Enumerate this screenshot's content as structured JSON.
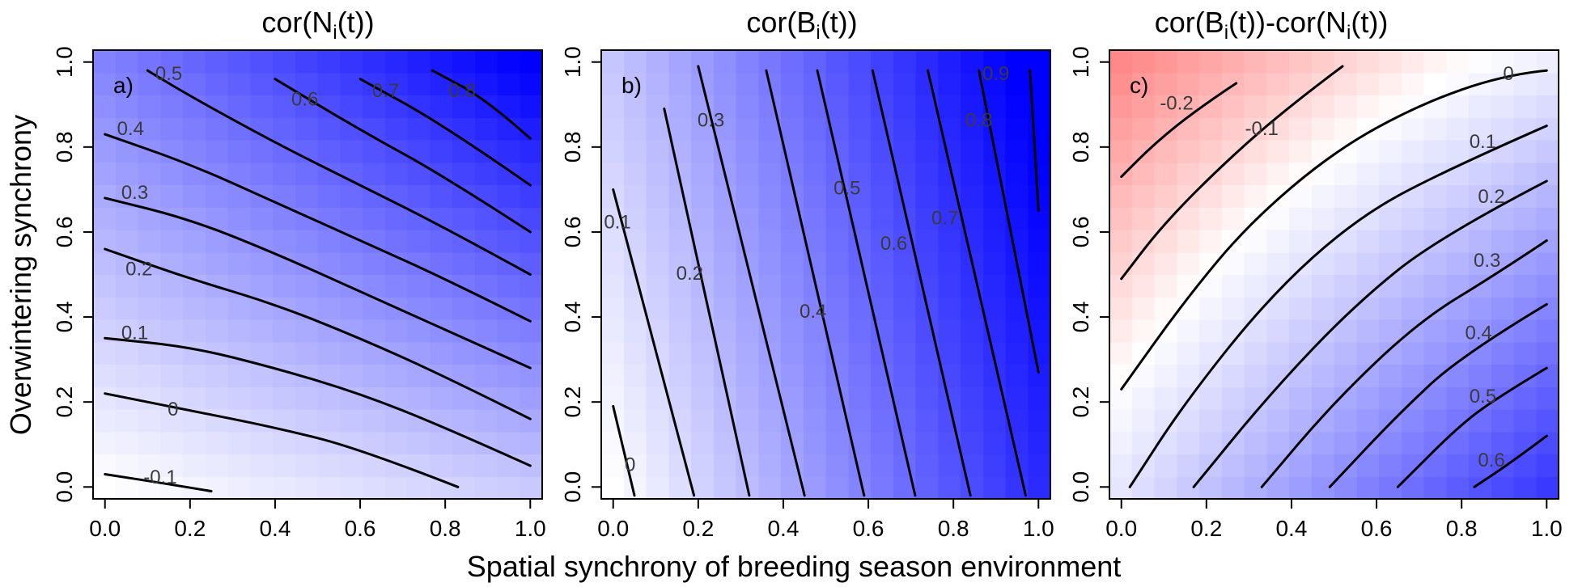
{
  "figure": {
    "x_axis_label": "Spatial synchrony of breeding season environment",
    "y_axis_label": "Overwintering synchrony"
  },
  "colors": {
    "negative": "#ff0000",
    "zero": "#ffffff",
    "positive": "#0000ff",
    "contour": "#000000"
  },
  "chart_data": [
    {
      "type": "heatmap",
      "panel": "a)",
      "title_parts": [
        "cor(N",
        "i",
        "(t))"
      ],
      "title_text": "cor(Ni(t))",
      "x": [
        0.0,
        0.2,
        0.4,
        0.6,
        0.8,
        1.0
      ],
      "y": [
        0.0,
        0.2,
        0.4,
        0.6,
        0.8,
        1.0
      ],
      "xlim": [
        0,
        1
      ],
      "ylim": [
        0,
        1
      ],
      "xticks": [
        "0.0",
        "0.2",
        "0.4",
        "0.6",
        "0.8",
        "1.0"
      ],
      "yticks": [
        "0.0",
        "0.2",
        "0.4",
        "0.6",
        "0.8",
        "1.0"
      ],
      "color_range": [
        -0.6,
        0.9
      ],
      "grid_cells": 20,
      "surface": {
        "intercept": 0.0,
        "x_coef": 0.19,
        "y_coef": 0.44,
        "xy_coef": 0.28,
        "y2_coef": 0.0
      },
      "contour_levels": [
        "-0.1",
        "0",
        "0.1",
        "0.2",
        "0.3",
        "0.4",
        "0.5",
        "0.6",
        "0.7",
        "0.8"
      ],
      "contours": [
        {
          "level": -0.1,
          "label": "-0.1",
          "points": [
            [
              0.0,
              0.03
            ],
            [
              0.13,
              0.01
            ],
            [
              0.25,
              -0.01
            ]
          ]
        },
        {
          "level": 0,
          "label": "0",
          "points": [
            [
              0.0,
              0.22
            ],
            [
              0.2,
              0.18
            ],
            [
              0.4,
              0.14
            ],
            [
              0.6,
              0.09
            ],
            [
              0.83,
              0.0
            ]
          ]
        },
        {
          "level": 0.1,
          "label": "0.1",
          "points": [
            [
              0.0,
              0.35
            ],
            [
              0.2,
              0.33
            ],
            [
              0.4,
              0.28
            ],
            [
              0.6,
              0.22
            ],
            [
              0.8,
              0.14
            ],
            [
              1.0,
              0.05
            ]
          ]
        },
        {
          "level": 0.2,
          "label": "0.2",
          "points": [
            [
              0.0,
              0.56
            ],
            [
              0.2,
              0.49
            ],
            [
              0.4,
              0.43
            ],
            [
              0.6,
              0.35
            ],
            [
              0.8,
              0.26
            ],
            [
              1.0,
              0.16
            ]
          ]
        },
        {
          "level": 0.3,
          "label": "0.3",
          "points": [
            [
              0.0,
              0.68
            ],
            [
              0.2,
              0.63
            ],
            [
              0.4,
              0.55
            ],
            [
              0.6,
              0.46
            ],
            [
              0.8,
              0.37
            ],
            [
              1.0,
              0.28
            ]
          ]
        },
        {
          "level": 0.4,
          "label": "0.4",
          "points": [
            [
              0.0,
              0.83
            ],
            [
              0.2,
              0.76
            ],
            [
              0.4,
              0.67
            ],
            [
              0.6,
              0.58
            ],
            [
              0.8,
              0.49
            ],
            [
              1.0,
              0.39
            ]
          ]
        },
        {
          "level": 0.5,
          "label": "0.5",
          "points": [
            [
              0.1,
              0.98
            ],
            [
              0.2,
              0.92
            ],
            [
              0.4,
              0.81
            ],
            [
              0.6,
              0.71
            ],
            [
              0.8,
              0.61
            ],
            [
              1.0,
              0.5
            ]
          ]
        },
        {
          "level": 0.6,
          "label": "0.6",
          "points": [
            [
              0.4,
              0.96
            ],
            [
              0.6,
              0.84
            ],
            [
              0.8,
              0.73
            ],
            [
              1.0,
              0.6
            ]
          ]
        },
        {
          "level": 0.7,
          "label": "0.7",
          "points": [
            [
              0.6,
              0.96
            ],
            [
              0.8,
              0.85
            ],
            [
              1.0,
              0.71
            ]
          ]
        },
        {
          "level": 0.8,
          "label": "0.8",
          "points": [
            [
              0.77,
              0.98
            ],
            [
              0.9,
              0.91
            ],
            [
              1.0,
              0.82
            ]
          ]
        }
      ],
      "contour_label_positions": [
        [
          0.13,
          0.02
        ],
        [
          0.16,
          0.18
        ],
        [
          0.07,
          0.36
        ],
        [
          0.08,
          0.51
        ],
        [
          0.07,
          0.69
        ],
        [
          0.06,
          0.84
        ],
        [
          0.15,
          0.97
        ],
        [
          0.47,
          0.91
        ],
        [
          0.66,
          0.93
        ],
        [
          0.84,
          0.93
        ]
      ]
    },
    {
      "type": "heatmap",
      "panel": "b)",
      "title_parts": [
        "cor(B",
        "i",
        "(t))"
      ],
      "title_text": "cor(Bi(t))",
      "x": [
        0.0,
        0.2,
        0.4,
        0.6,
        0.8,
        1.0
      ],
      "y": [
        0.0,
        0.2,
        0.4,
        0.6,
        0.8,
        1.0
      ],
      "xlim": [
        0,
        1
      ],
      "ylim": [
        0,
        1
      ],
      "xticks": [
        "0.0",
        "0.2",
        "0.4",
        "0.6",
        "0.8",
        "1.0"
      ],
      "yticks": [
        "0.0",
        "0.2",
        "0.4",
        "0.6",
        "0.8",
        "1.0"
      ],
      "color_range": [
        -0.6,
        0.9
      ],
      "grid_cells": 20,
      "surface": {
        "intercept": 0.0,
        "x_coef": 0.75,
        "y_coef": 0.2,
        "xy_coef": 0.0,
        "y2_coef": 0.0
      },
      "contour_levels": [
        "0",
        "0.1",
        "0.2",
        "0.3",
        "0.4",
        "0.5",
        "0.6",
        "0.7",
        "0.8",
        "0.9"
      ],
      "contours": [
        {
          "level": 0,
          "label": "0",
          "points": [
            [
              0.0,
              0.19
            ],
            [
              0.05,
              -0.02
            ]
          ]
        },
        {
          "level": 0.1,
          "label": "0.1",
          "points": [
            [
              0.0,
              0.7
            ],
            [
              0.19,
              -0.02
            ]
          ]
        },
        {
          "level": 0.2,
          "label": "0.2",
          "points": [
            [
              0.12,
              0.89
            ],
            [
              0.32,
              -0.02
            ]
          ]
        },
        {
          "level": 0.3,
          "label": "0.3",
          "points": [
            [
              0.2,
              0.99
            ],
            [
              0.45,
              -0.02
            ]
          ]
        },
        {
          "level": 0.4,
          "label": "0.4",
          "points": [
            [
              0.36,
              0.98
            ],
            [
              0.59,
              -0.02
            ]
          ]
        },
        {
          "level": 0.5,
          "label": "0.5",
          "points": [
            [
              0.48,
              0.98
            ],
            [
              0.71,
              -0.02
            ]
          ]
        },
        {
          "level": 0.6,
          "label": "0.6",
          "points": [
            [
              0.61,
              0.98
            ],
            [
              0.84,
              -0.02
            ]
          ]
        },
        {
          "level": 0.7,
          "label": "0.7",
          "points": [
            [
              0.74,
              0.98
            ],
            [
              0.97,
              -0.02
            ]
          ]
        },
        {
          "level": 0.8,
          "label": "0.8",
          "points": [
            [
              0.86,
              0.98
            ],
            [
              1.0,
              0.27
            ]
          ]
        },
        {
          "level": 0.9,
          "label": "0.9",
          "points": [
            [
              0.98,
              0.98
            ],
            [
              1.0,
              0.65
            ]
          ]
        }
      ],
      "contour_label_positions": [
        [
          0.04,
          0.05
        ],
        [
          0.01,
          0.62
        ],
        [
          0.18,
          0.5
        ],
        [
          0.23,
          0.86
        ],
        [
          0.47,
          0.41
        ],
        [
          0.55,
          0.7
        ],
        [
          0.66,
          0.57
        ],
        [
          0.78,
          0.63
        ],
        [
          0.86,
          0.86
        ],
        [
          0.9,
          0.97
        ]
      ]
    },
    {
      "type": "heatmap",
      "panel": "c)",
      "title_parts": [
        "cor(B",
        "i",
        "(t))-cor(N",
        "i",
        "(t))"
      ],
      "title_text": "cor(Bi(t))-cor(Ni(t))",
      "x": [
        0.0,
        0.2,
        0.4,
        0.6,
        0.8,
        1.0
      ],
      "y": [
        0.0,
        0.2,
        0.4,
        0.6,
        0.8,
        1.0
      ],
      "xlim": [
        0,
        1
      ],
      "ylim": [
        0,
        1
      ],
      "xticks": [
        "0.0",
        "0.2",
        "0.4",
        "0.6",
        "0.8",
        "1.0"
      ],
      "yticks": [
        "0.0",
        "0.2",
        "0.4",
        "0.6",
        "0.8",
        "1.0"
      ],
      "color_range": [
        -0.6,
        0.9
      ],
      "grid_cells": 20,
      "surface": {
        "intercept": 0.09,
        "x_coef": 0.61,
        "y_coef": -0.37,
        "xy_coef": -0.27,
        "y2_coef": 0.0
      },
      "contour_levels": [
        "-0.2",
        "-0.1",
        "0",
        "0.1",
        "0.2",
        "0.3",
        "0.4",
        "0.5",
        "0.6"
      ],
      "contours": [
        {
          "level": -0.2,
          "label": "-0.2",
          "points": [
            [
              0.0,
              0.73
            ],
            [
              0.08,
              0.81
            ],
            [
              0.18,
              0.89
            ],
            [
              0.27,
              0.95
            ]
          ]
        },
        {
          "level": -0.1,
          "label": "-0.1",
          "points": [
            [
              0.0,
              0.49
            ],
            [
              0.1,
              0.62
            ],
            [
              0.25,
              0.77
            ],
            [
              0.4,
              0.9
            ],
            [
              0.52,
              0.99
            ]
          ]
        },
        {
          "level": 0,
          "label": "0",
          "points": [
            [
              0.0,
              0.23
            ],
            [
              0.15,
              0.44
            ],
            [
              0.3,
              0.62
            ],
            [
              0.5,
              0.79
            ],
            [
              0.7,
              0.9
            ],
            [
              0.9,
              0.97
            ],
            [
              1.0,
              0.98
            ]
          ]
        },
        {
          "level": 0.1,
          "label": "0.1",
          "points": [
            [
              0.02,
              0.0
            ],
            [
              0.15,
              0.2
            ],
            [
              0.35,
              0.45
            ],
            [
              0.55,
              0.63
            ],
            [
              0.75,
              0.74
            ],
            [
              1.0,
              0.85
            ]
          ]
        },
        {
          "level": 0.2,
          "label": "0.2",
          "points": [
            [
              0.17,
              0.0
            ],
            [
              0.35,
              0.22
            ],
            [
              0.55,
              0.43
            ],
            [
              0.75,
              0.59
            ],
            [
              1.0,
              0.72
            ]
          ]
        },
        {
          "level": 0.3,
          "label": "0.3",
          "points": [
            [
              0.33,
              0.0
            ],
            [
              0.5,
              0.2
            ],
            [
              0.7,
              0.39
            ],
            [
              0.88,
              0.5
            ],
            [
              1.0,
              0.58
            ]
          ]
        },
        {
          "level": 0.4,
          "label": "0.4",
          "points": [
            [
              0.49,
              0.0
            ],
            [
              0.65,
              0.17
            ],
            [
              0.8,
              0.31
            ],
            [
              1.0,
              0.43
            ]
          ]
        },
        {
          "level": 0.5,
          "label": "0.5",
          "points": [
            [
              0.65,
              0.0
            ],
            [
              0.8,
              0.15
            ],
            [
              0.9,
              0.22
            ],
            [
              1.0,
              0.28
            ]
          ]
        },
        {
          "level": 0.6,
          "label": "0.6",
          "points": [
            [
              0.83,
              0.0
            ],
            [
              0.92,
              0.06
            ],
            [
              1.0,
              0.12
            ]
          ]
        }
      ],
      "contour_label_positions": [
        [
          0.13,
          0.9
        ],
        [
          0.33,
          0.84
        ],
        [
          0.91,
          0.97
        ],
        [
          0.85,
          0.81
        ],
        [
          0.87,
          0.68
        ],
        [
          0.86,
          0.53
        ],
        [
          0.84,
          0.36
        ],
        [
          0.85,
          0.21
        ],
        [
          0.87,
          0.06
        ]
      ]
    }
  ]
}
